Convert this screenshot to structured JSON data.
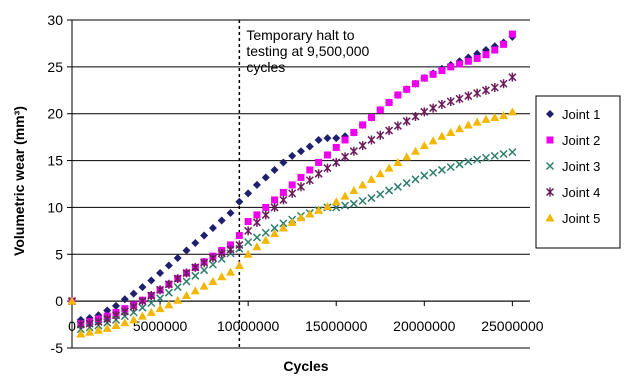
{
  "chart_data": {
    "type": "scatter",
    "xlabel": "Cycles",
    "ylabel": "Volumetric wear (mm³)",
    "xlim": [
      0,
      26000000
    ],
    "ylim": [
      -5,
      30
    ],
    "x_ticks": [
      0,
      5000000,
      10000000,
      15000000,
      20000000,
      25000000
    ],
    "x_tick_labels": [
      "0",
      "5000000",
      "10000000",
      "15000000",
      "20000000",
      "25000000"
    ],
    "y_ticks": [
      -5,
      0,
      5,
      10,
      15,
      20,
      25,
      30
    ],
    "y_tick_labels": [
      "-5",
      "0",
      "5",
      "10",
      "15",
      "20",
      "25",
      "30"
    ],
    "grid": "horizontal",
    "legend_position": "right",
    "annotation": {
      "lines": [
        "Temporary halt to",
        "testing at 9,500,000",
        "cycles"
      ],
      "x": 9500000
    },
    "x": [
      0,
      500000,
      1000000,
      1500000,
      2000000,
      2500000,
      3000000,
      3500000,
      4000000,
      4500000,
      5000000,
      5500000,
      6000000,
      6500000,
      7000000,
      7500000,
      8000000,
      8500000,
      9000000,
      9500000,
      10000000,
      10500000,
      11000000,
      11500000,
      12000000,
      12500000,
      13000000,
      13500000,
      14000000,
      14500000,
      15000000,
      15500000,
      16000000,
      16500000,
      17000000,
      17500000,
      18000000,
      18500000,
      19000000,
      19500000,
      20000000,
      20500000,
      21000000,
      21500000,
      22000000,
      22500000,
      23000000,
      23500000,
      24000000,
      24500000,
      25000000
    ],
    "series": [
      {
        "name": "Joint 1",
        "color": "#1f1f6e",
        "marker": "diamond",
        "values": [
          0,
          -2.0,
          -1.8,
          -1.5,
          -1.0,
          -0.5,
          0.2,
          0.8,
          1.5,
          2.2,
          3.0,
          3.8,
          4.6,
          5.4,
          6.2,
          7.0,
          7.8,
          8.6,
          9.4,
          10.6,
          11.5,
          12.4,
          13.2,
          14.0,
          14.8,
          15.5,
          16.0,
          16.5,
          17.2,
          17.4,
          17.4,
          17.6,
          18.0,
          18.8,
          19.6,
          20.4,
          21.2,
          22.0,
          22.6,
          23.2,
          23.8,
          24.3,
          24.8,
          25.2,
          25.6,
          26.0,
          26.4,
          26.8,
          27.2,
          27.6,
          28.2
        ]
      },
      {
        "name": "Joint 2",
        "color": "#ee00ee",
        "marker": "square",
        "values": [
          0,
          -2.4,
          -2.2,
          -1.9,
          -1.6,
          -1.2,
          -0.8,
          -0.4,
          0.1,
          0.6,
          1.2,
          1.8,
          2.4,
          3.0,
          3.6,
          4.2,
          4.8,
          5.4,
          6.0,
          7.0,
          8.5,
          9.2,
          10.0,
          10.8,
          11.6,
          12.4,
          13.2,
          14.0,
          14.8,
          15.6,
          16.4,
          17.2,
          18.0,
          18.8,
          19.6,
          20.4,
          21.2,
          22.0,
          22.6,
          23.2,
          23.8,
          24.2,
          24.6,
          25.0,
          25.3,
          25.6,
          25.9,
          26.3,
          26.8,
          27.4,
          28.5
        ]
      },
      {
        "name": "Joint 3",
        "color": "#2e7d6e",
        "marker": "cross",
        "values": [
          0,
          -3.0,
          -2.8,
          -2.6,
          -2.3,
          -2.0,
          -1.6,
          -1.2,
          -0.7,
          -0.2,
          0.3,
          0.9,
          1.5,
          2.1,
          2.7,
          3.3,
          3.9,
          4.5,
          5.1,
          5.6,
          6.3,
          6.8,
          7.3,
          7.8,
          8.3,
          8.7,
          9.1,
          9.4,
          9.7,
          10.0,
          10.0,
          10.2,
          10.4,
          10.7,
          11.0,
          11.4,
          11.8,
          12.2,
          12.6,
          13.0,
          13.4,
          13.7,
          14.0,
          14.3,
          14.6,
          14.9,
          15.1,
          15.3,
          15.5,
          15.7,
          15.9
        ]
      },
      {
        "name": "Joint 4",
        "color": "#6b1d5b",
        "marker": "star",
        "values": [
          0,
          -2.5,
          -2.4,
          -2.2,
          -1.9,
          -1.5,
          -1.1,
          -0.6,
          0.0,
          0.6,
          1.2,
          1.8,
          2.4,
          3.0,
          3.6,
          4.1,
          4.6,
          5.1,
          5.5,
          6.0,
          7.5,
          8.4,
          9.2,
          10.0,
          10.8,
          11.5,
          12.2,
          12.9,
          13.6,
          14.2,
          14.8,
          15.4,
          16.0,
          16.6,
          17.2,
          17.7,
          18.2,
          18.7,
          19.2,
          19.7,
          20.2,
          20.6,
          21.0,
          21.3,
          21.6,
          21.9,
          22.2,
          22.5,
          22.8,
          23.2,
          23.9
        ]
      },
      {
        "name": "Joint 5",
        "color": "#f2b705",
        "marker": "triangle",
        "values": [
          0,
          -3.5,
          -3.3,
          -3.1,
          -2.9,
          -2.6,
          -2.3,
          -2.0,
          -1.6,
          -1.2,
          -0.8,
          -0.4,
          0.1,
          0.6,
          1.1,
          1.6,
          2.1,
          2.6,
          3.1,
          3.8,
          5.0,
          5.8,
          6.5,
          7.2,
          7.8,
          8.4,
          8.9,
          9.3,
          9.7,
          10.1,
          10.6,
          11.2,
          11.8,
          12.4,
          13.0,
          13.6,
          14.2,
          14.8,
          15.4,
          16.0,
          16.6,
          17.1,
          17.6,
          18.0,
          18.4,
          18.8,
          19.1,
          19.4,
          19.6,
          19.8,
          20.2
        ]
      }
    ]
  }
}
